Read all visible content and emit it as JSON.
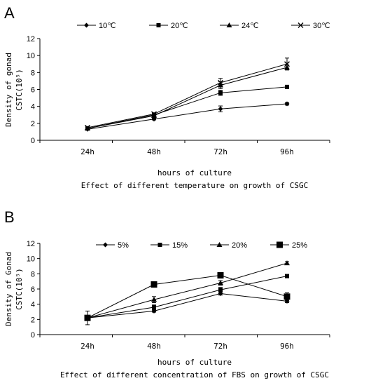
{
  "chart_data": [
    {
      "panel": "A",
      "type": "line",
      "categories": [
        "24h",
        "48h",
        "72h",
        "96h"
      ],
      "xlabel": "hours of culture",
      "ylabel": "Density of gonad CSTC(10⁵)",
      "caption": "Effect of different temperature on growth of CSGC",
      "ylim": [
        0,
        12
      ],
      "yticks": [
        0,
        2,
        4,
        6,
        8,
        10,
        12
      ],
      "legend_position": "top",
      "grid": false,
      "series": [
        {
          "name": "10℃",
          "marker": "diamond",
          "values": [
            1.3,
            2.5,
            3.7,
            4.3
          ],
          "errors": [
            0.1,
            0.1,
            0.35,
            0.15
          ]
        },
        {
          "name": "20℃",
          "marker": "square",
          "values": [
            1.4,
            3.0,
            5.6,
            6.3
          ],
          "errors": [
            0.15,
            0.2,
            0.3,
            0.15
          ]
        },
        {
          "name": "24℃",
          "marker": "triangle",
          "values": [
            1.4,
            2.9,
            6.5,
            8.6
          ],
          "errors": [
            0.15,
            0.15,
            0.4,
            0.3
          ]
        },
        {
          "name": "30℃",
          "marker": "x",
          "values": [
            1.5,
            3.1,
            6.8,
            9.0
          ],
          "errors": [
            0.1,
            0.15,
            0.5,
            0.7
          ]
        }
      ]
    },
    {
      "panel": "B",
      "type": "line",
      "categories": [
        "24h",
        "48h",
        "72h",
        "96h"
      ],
      "xlabel": "hours of culture",
      "ylabel": "Density of Gonad CSTC(10⁵)",
      "caption": "Effect of different concentration of FBS on growth of CSGC",
      "ylim": [
        0,
        12
      ],
      "yticks": [
        0,
        2,
        4,
        6,
        8,
        10,
        12
      ],
      "legend_position": "top",
      "grid": false,
      "series": [
        {
          "name": "5%",
          "marker": "diamond",
          "values": [
            2.2,
            3.1,
            5.4,
            4.4
          ],
          "errors": [
            0.1,
            0.15,
            0.2,
            0.2
          ]
        },
        {
          "name": "15%",
          "marker": "square",
          "values": [
            2.2,
            3.6,
            5.9,
            7.7
          ],
          "errors": [
            0.1,
            0.3,
            0.3,
            0.1
          ]
        },
        {
          "name": "20%",
          "marker": "triangle",
          "values": [
            2.2,
            4.6,
            6.8,
            9.4
          ],
          "errors": [
            0.1,
            0.4,
            0.3,
            0.2
          ]
        },
        {
          "name": "25%",
          "marker": "square-large",
          "values": [
            2.2,
            6.6,
            7.8,
            5.0
          ],
          "errors": [
            0.9,
            0.25,
            0.15,
            0.5
          ]
        }
      ]
    }
  ],
  "panels": {
    "a": {
      "letter": "A"
    },
    "b": {
      "letter": "B"
    }
  }
}
